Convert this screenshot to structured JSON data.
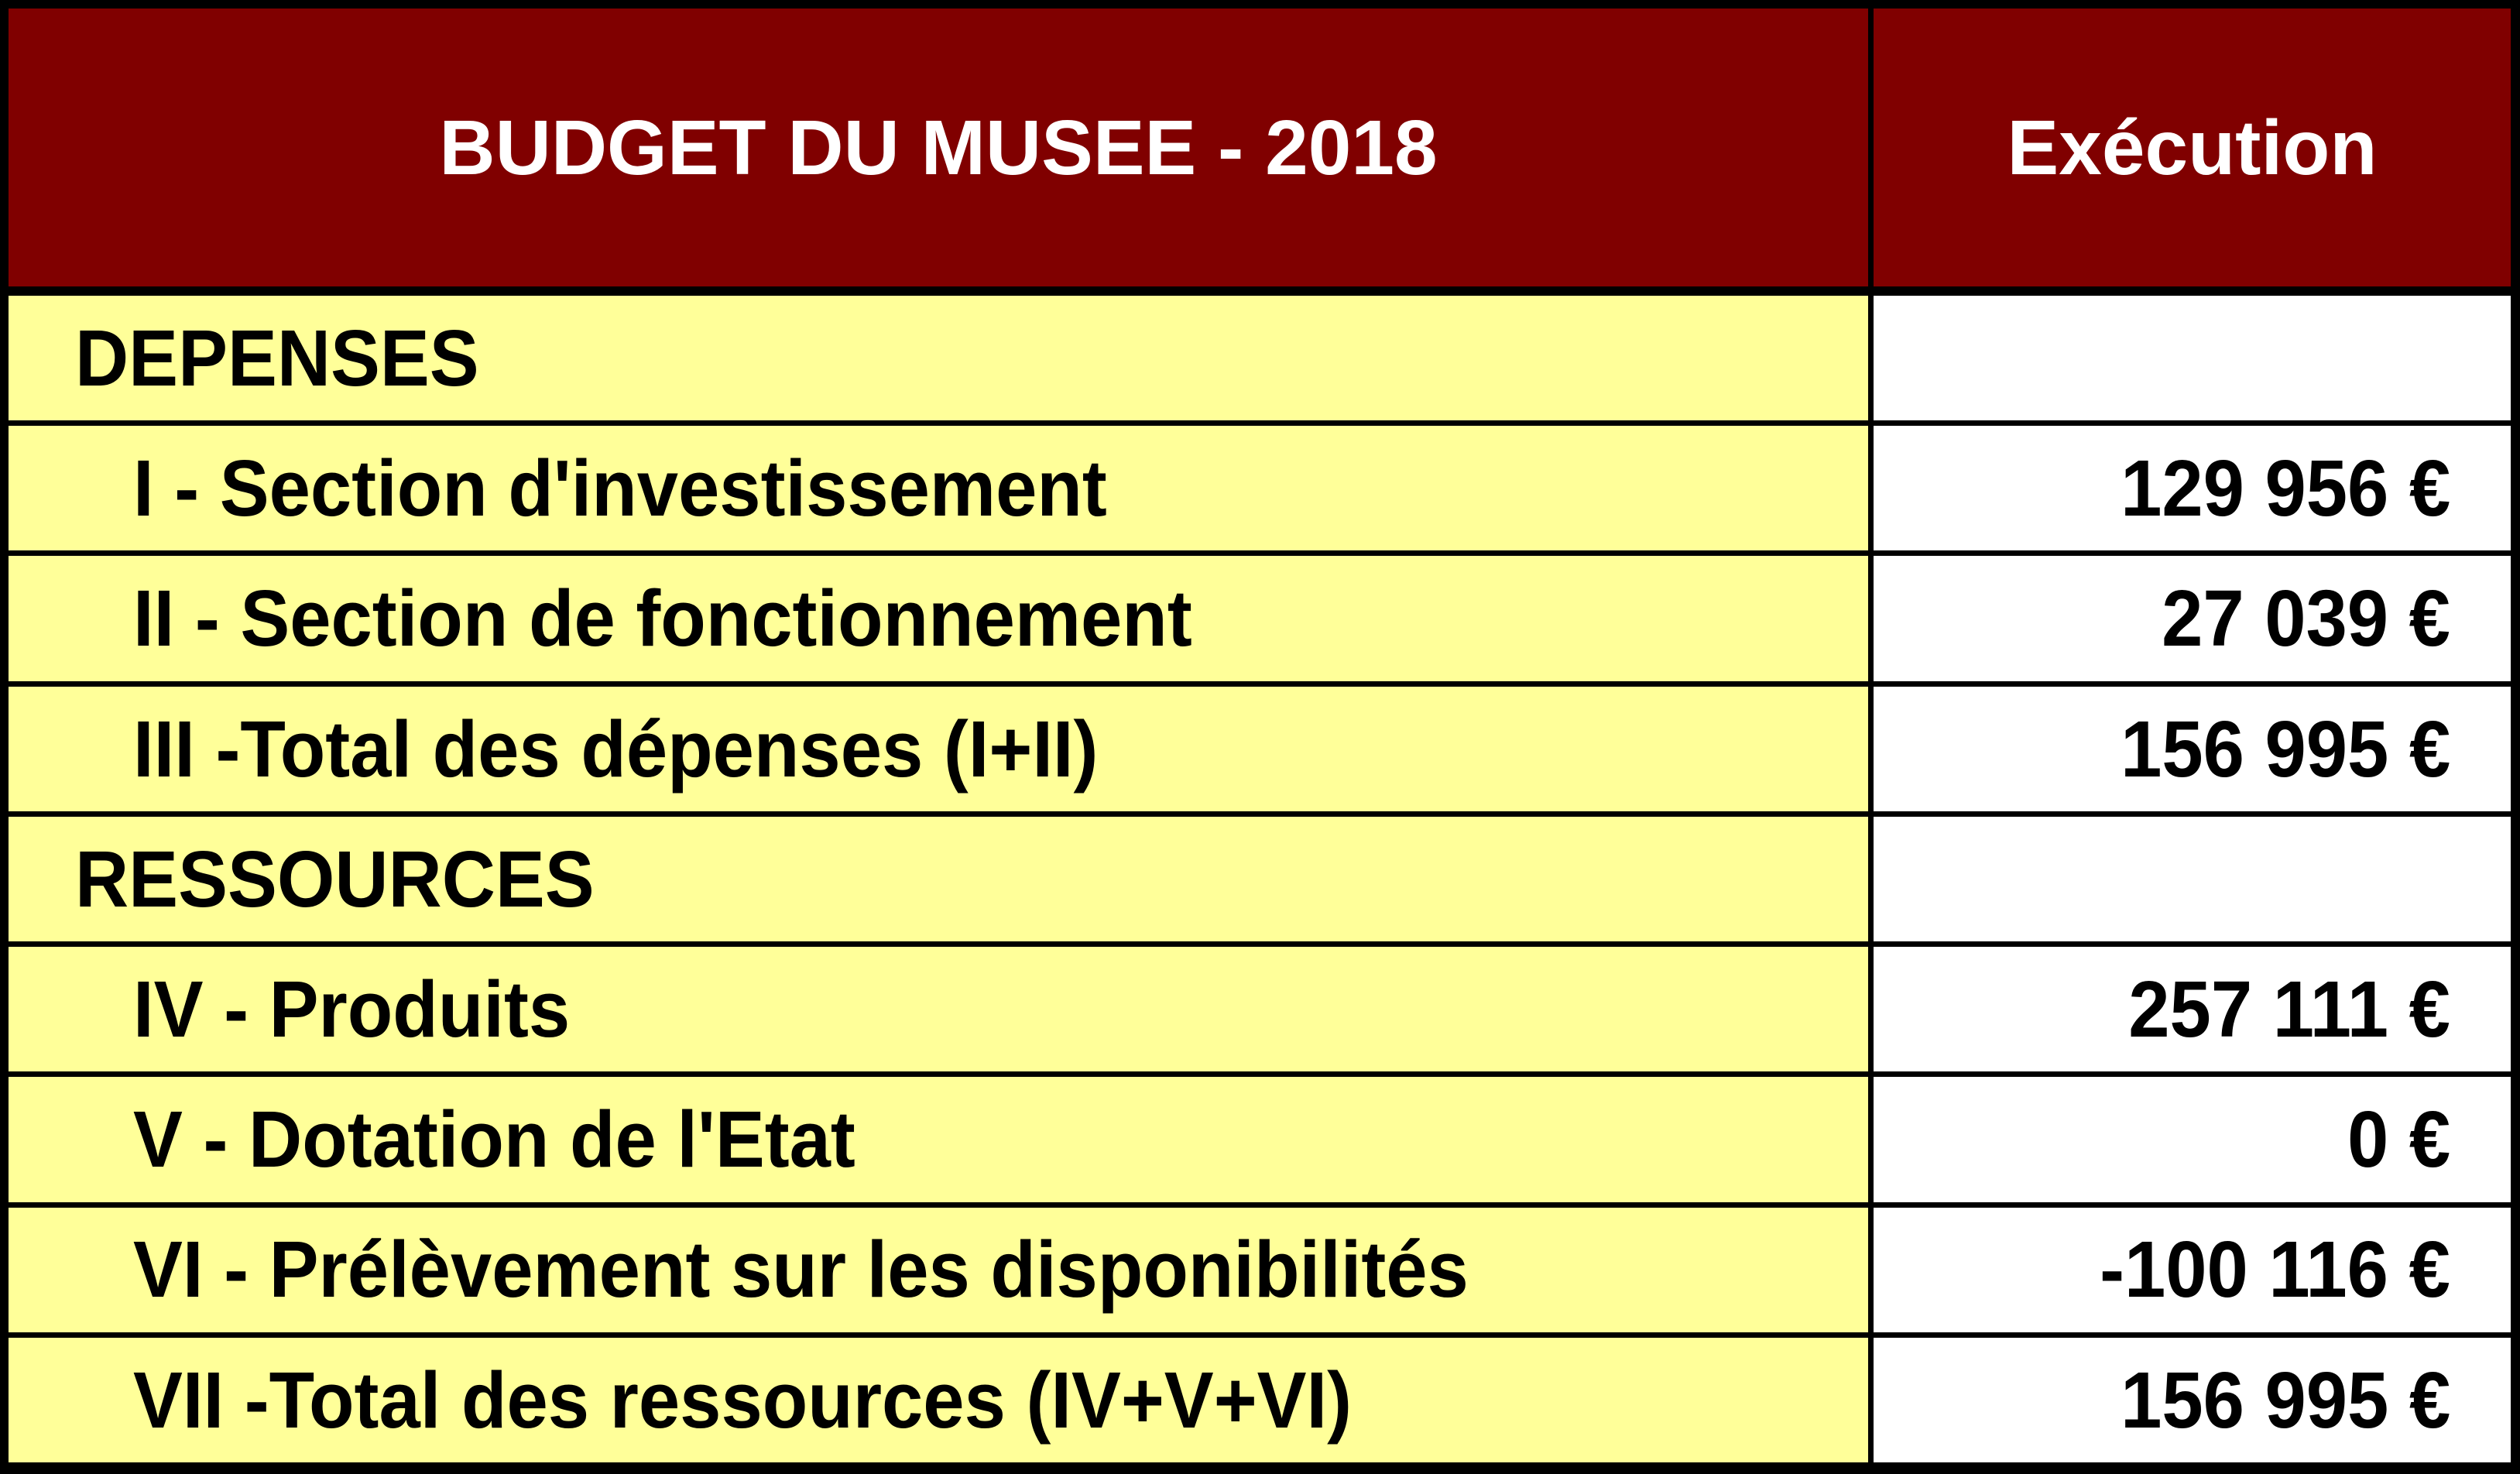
{
  "table": {
    "header": {
      "title": "BUDGET DU MUSEE - 2018",
      "execution_column": "Exécution"
    },
    "rows": [
      {
        "type": "section",
        "label": "DEPENSES",
        "value": ""
      },
      {
        "type": "detail",
        "label": "I - Section d'investissement",
        "value": "129 956 €"
      },
      {
        "type": "detail",
        "label": "II - Section de fonctionnement",
        "value": "27 039 €"
      },
      {
        "type": "detail",
        "label": "III -Total des dépenses (I+II)",
        "value": "156 995 €"
      },
      {
        "type": "section",
        "label": "RESSOURCES",
        "value": ""
      },
      {
        "type": "detail",
        "label": "IV - Produits",
        "value": "257 111 €"
      },
      {
        "type": "detail",
        "label": "V - Dotation de l'Etat",
        "value": "0 €"
      },
      {
        "type": "detail",
        "label": "VI - Prélèvement sur les disponibilités",
        "value": "-100 116 €"
      },
      {
        "type": "detail",
        "label": "VII -Total des ressources (IV+V+VI)",
        "value": "156 995 €"
      }
    ],
    "colors": {
      "header_bg": "#800000",
      "header_text": "#FFFFFF",
      "label_bg": "#FFFF99",
      "value_bg": "#FFFFFF",
      "border": "#000000",
      "text": "#000000"
    }
  }
}
